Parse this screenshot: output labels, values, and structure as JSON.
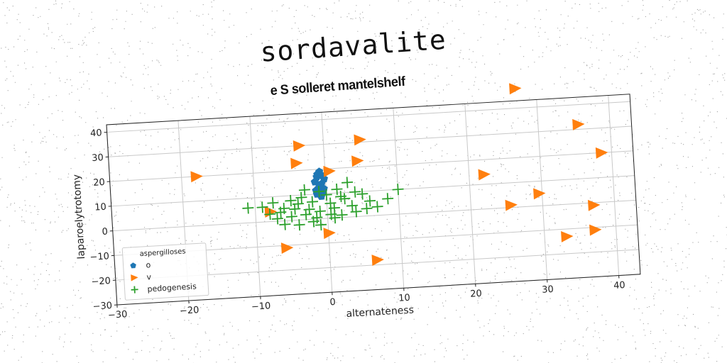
{
  "title": "sordavalite",
  "subtitle": "e S solleret mantelshelf",
  "chart_data": {
    "type": "scatter",
    "xlabel": "alternateness",
    "ylabel": "laparoelytrotomy",
    "xlim": [
      -30,
      43
    ],
    "ylim": [
      -30,
      43
    ],
    "xticks": [
      -30,
      -20,
      -10,
      0,
      10,
      20,
      30,
      40
    ],
    "yticks": [
      -30,
      -20,
      -10,
      0,
      10,
      20,
      30,
      40
    ],
    "grid": true,
    "legend": {
      "title": "aspergilloses",
      "placement": "lower-left"
    },
    "series": [
      {
        "name": "o",
        "marker": "pentagon",
        "color": "#1f77b4",
        "points": [
          [
            -1.2,
            17
          ],
          [
            -0.8,
            19
          ],
          [
            -1.5,
            15
          ],
          [
            -0.6,
            14
          ],
          [
            -1.0,
            12.5
          ],
          [
            -0.4,
            11
          ],
          [
            -1.3,
            10
          ],
          [
            -0.7,
            9
          ],
          [
            -0.2,
            16
          ],
          [
            -0.9,
            13.5
          ],
          [
            -1.1,
            18
          ],
          [
            -0.5,
            17.5
          ],
          [
            -1.4,
            11.5
          ],
          [
            -0.3,
            12
          ],
          [
            -0.8,
            9.5
          ]
        ]
      },
      {
        "name": "v",
        "marker": "triangle-right",
        "color": "#ff7f0e",
        "points": [
          [
            27,
            48
          ],
          [
            -3.5,
            30
          ],
          [
            5,
            31
          ],
          [
            35.5,
            32
          ],
          [
            -4,
            23
          ],
          [
            4.5,
            22.5
          ],
          [
            0.5,
            19
          ],
          [
            -18,
            20
          ],
          [
            38.5,
            20
          ],
          [
            22,
            14
          ],
          [
            -8,
            4
          ],
          [
            25.5,
            1
          ],
          [
            29.5,
            5
          ],
          [
            37,
            -1
          ],
          [
            0,
            -6
          ],
          [
            -6,
            -11
          ],
          [
            37,
            -11
          ],
          [
            33,
            -13
          ],
          [
            6.5,
            -18
          ]
        ]
      },
      {
        "name": "pedogenesis",
        "marker": "plus",
        "color": "#2ca02c",
        "points": [
          [
            3,
            14
          ],
          [
            -3,
            12
          ],
          [
            -1,
            11
          ],
          [
            1.5,
            11.5
          ],
          [
            4,
            10
          ],
          [
            10,
            10
          ],
          [
            -7.5,
            7.5
          ],
          [
            -9,
            6
          ],
          [
            -11,
            6
          ],
          [
            -5,
            8
          ],
          [
            -3.5,
            9
          ],
          [
            0,
            9.5
          ],
          [
            2,
            8.5
          ],
          [
            5,
            9
          ],
          [
            -6,
            5
          ],
          [
            -4,
            6.5
          ],
          [
            -2,
            7
          ],
          [
            0.5,
            6
          ],
          [
            2.5,
            7.5
          ],
          [
            6,
            6
          ],
          [
            8.5,
            6.5
          ],
          [
            -8,
            3
          ],
          [
            -6.5,
            3.5
          ],
          [
            -4.5,
            4.5
          ],
          [
            -2.5,
            4
          ],
          [
            -1,
            3
          ],
          [
            1,
            4
          ],
          [
            3.5,
            4.5
          ],
          [
            5.5,
            3
          ],
          [
            7,
            3.5
          ],
          [
            -7,
            1
          ],
          [
            -5,
            1.5
          ],
          [
            -3,
            2
          ],
          [
            -1.5,
            0.5
          ],
          [
            0.5,
            1.5
          ],
          [
            2,
            1
          ],
          [
            4,
            2
          ],
          [
            -6,
            -1.5
          ],
          [
            -4,
            -2
          ],
          [
            -2,
            -1
          ],
          [
            -1,
            -2.5
          ],
          [
            1,
            0
          ]
        ]
      }
    ]
  }
}
